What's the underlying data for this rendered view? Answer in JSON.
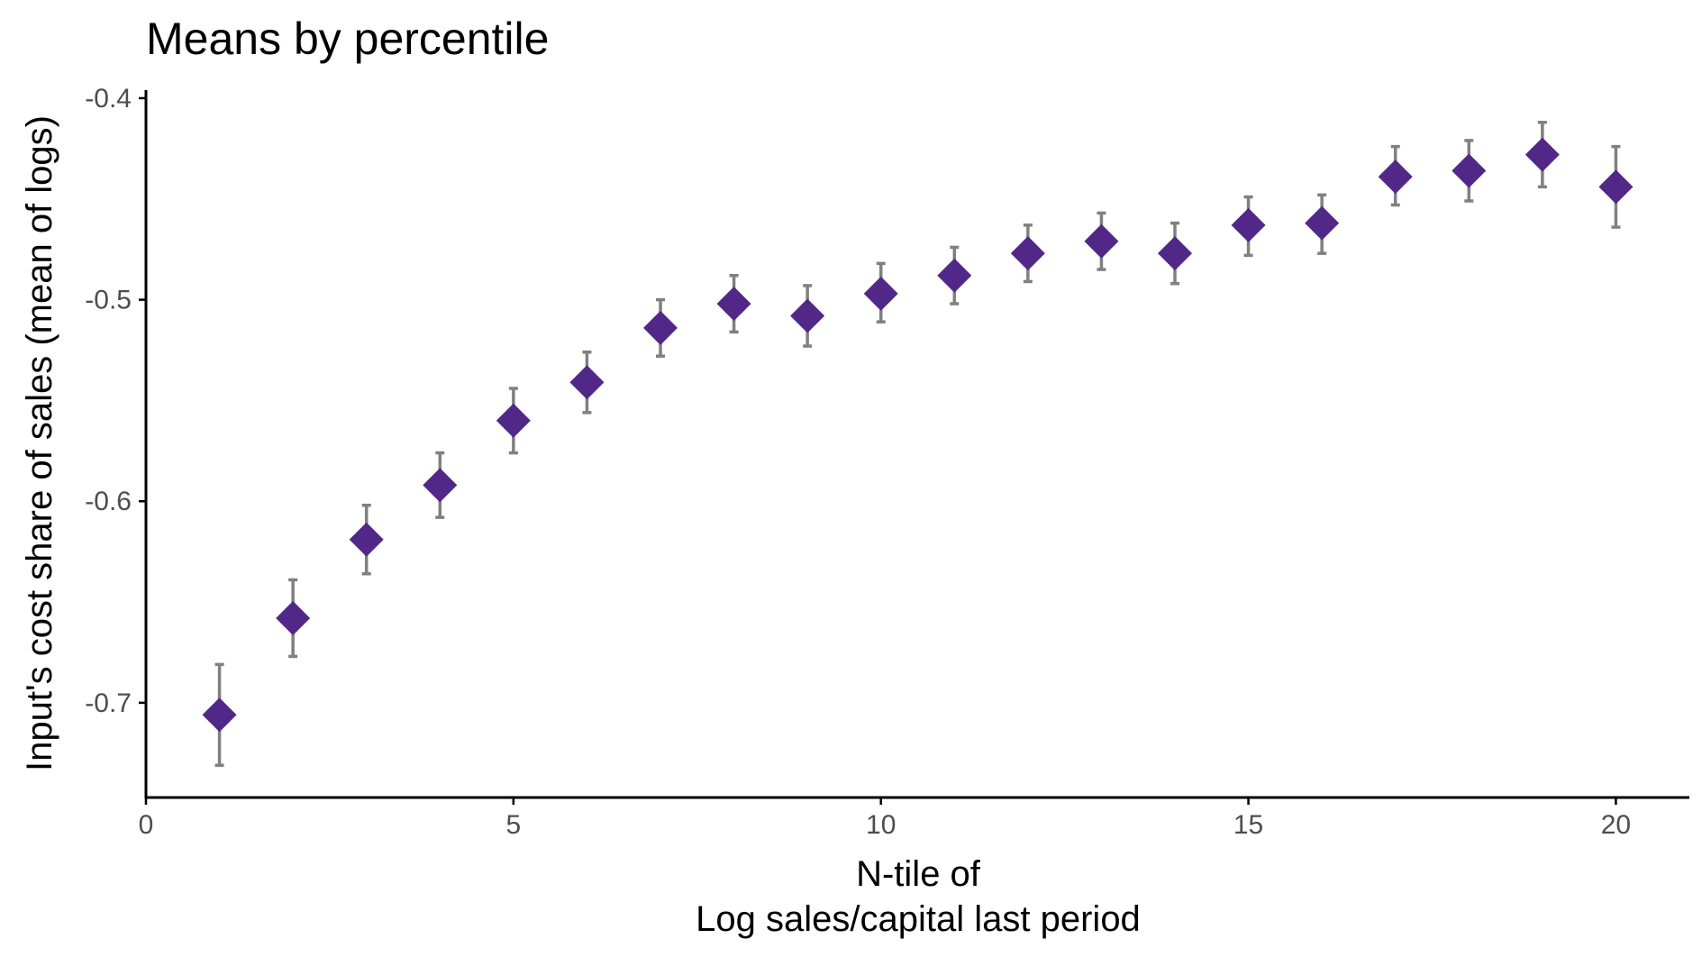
{
  "chart_data": {
    "type": "scatter",
    "title": "Means by percentile",
    "xlabel": [
      "N-tile of",
      "Log sales/capital last period"
    ],
    "ylabel": "Input's cost share of sales (mean of logs)",
    "xlim": [
      0,
      21
    ],
    "ylim": [
      -0.747,
      -0.396
    ],
    "x_ticks": [
      0,
      5,
      10,
      15,
      20
    ],
    "x_tick_labels": [
      "0",
      "5",
      "10",
      "15",
      "20"
    ],
    "y_ticks": [
      -0.4,
      -0.5,
      -0.6,
      -0.7
    ],
    "y_tick_labels": [
      "-0.4",
      "-0.5",
      "-0.6",
      "-0.7"
    ],
    "grid": false,
    "marker": "diamond",
    "marker_color": "#512888",
    "errorbar_color": "#808080",
    "series": [
      {
        "x": [
          1,
          2,
          3,
          4,
          5,
          6,
          7,
          8,
          9,
          10,
          11,
          12,
          13,
          14,
          15,
          16,
          17,
          18,
          19,
          20
        ],
        "y": [
          -0.706,
          -0.658,
          -0.619,
          -0.592,
          -0.56,
          -0.541,
          -0.514,
          -0.502,
          -0.508,
          -0.497,
          -0.488,
          -0.477,
          -0.471,
          -0.477,
          -0.463,
          -0.462,
          -0.439,
          -0.436,
          -0.428,
          -0.444
        ],
        "y_low": [
          -0.731,
          -0.677,
          -0.636,
          -0.608,
          -0.576,
          -0.556,
          -0.528,
          -0.516,
          -0.523,
          -0.511,
          -0.502,
          -0.491,
          -0.485,
          -0.492,
          -0.478,
          -0.477,
          -0.453,
          -0.451,
          -0.444,
          -0.464
        ],
        "y_high": [
          -0.681,
          -0.639,
          -0.602,
          -0.576,
          -0.544,
          -0.526,
          -0.5,
          -0.488,
          -0.493,
          -0.482,
          -0.474,
          -0.463,
          -0.457,
          -0.462,
          -0.449,
          -0.448,
          -0.424,
          -0.421,
          -0.412,
          -0.424
        ]
      }
    ]
  }
}
